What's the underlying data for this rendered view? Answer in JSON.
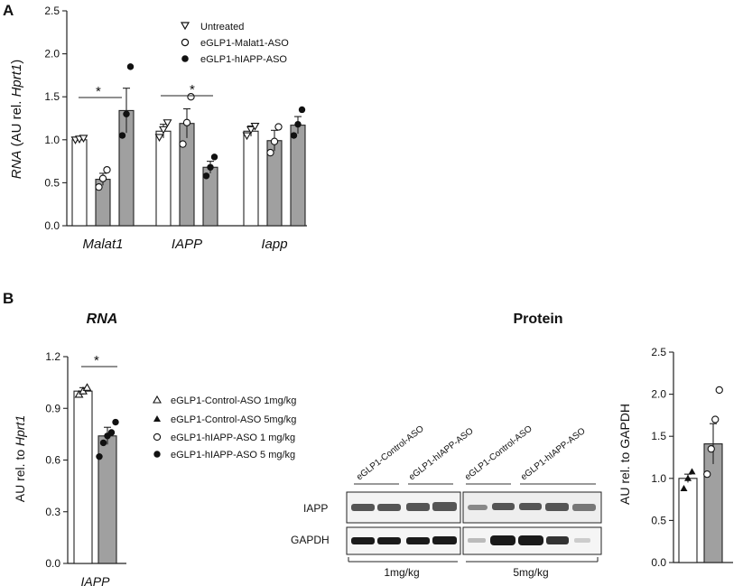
{
  "panel_a": {
    "letter": "A",
    "legend": [
      "Untreated",
      "eGLP1-Malat1-ASO",
      "eGLP1-hIAPP-ASO"
    ],
    "sig": [
      "*",
      "*"
    ]
  },
  "panel_b": {
    "letter": "B",
    "rna_title": "RNA",
    "protein_title": "Protein",
    "legend": [
      "eGLP1-Control-ASO 1mg/kg",
      "eGLP1-Control-ASO 5mg/kg",
      "eGLP1-hIAPP-ASO 1 mg/kg",
      "eGLP1-hIAPP-ASO 5 mg/kg"
    ],
    "sig": [
      "*"
    ],
    "blot": {
      "lane_headers": [
        "eGLP1-Control-ASO",
        "eGLP1-hIAPP-ASO",
        "eGLP1-Control-ASO",
        "eGLP1-hIAPP-ASO"
      ],
      "rows": [
        "IAPP",
        "GAPDH"
      ],
      "doses": [
        "1mg/kg",
        "5mg/kg"
      ]
    }
  },
  "chart_data": [
    {
      "type": "bar",
      "ylabel_parts": [
        "RNA",
        " (AU rel. ",
        "Hprt1",
        ")"
      ],
      "ylim": [
        0,
        2.5
      ],
      "yticks": [
        "0.0",
        "0.5",
        "1.0",
        "1.5",
        "2.0",
        "2.5"
      ],
      "categories": [
        "Malat1",
        "IAPP",
        "Iapp"
      ],
      "series": [
        {
          "name": "Untreated",
          "values": [
            1.0,
            1.1,
            1.1
          ],
          "errors": [
            0.02,
            0.08,
            0.06
          ],
          "points": [
            [
              1.0,
              1.01,
              1.02
            ],
            [
              1.03,
              1.12,
              1.2
            ],
            [
              1.05,
              1.12,
              1.16
            ]
          ]
        },
        {
          "name": "eGLP1-Malat1-ASO",
          "values": [
            0.54,
            1.19,
            0.99
          ],
          "errors": [
            0.07,
            0.17,
            0.12
          ],
          "points": [
            [
              0.45,
              0.55,
              0.65
            ],
            [
              0.95,
              1.2,
              1.5
            ],
            [
              0.85,
              0.98,
              1.15
            ]
          ]
        },
        {
          "name": "eGLP1-hIAPP-ASO",
          "values": [
            1.34,
            0.68,
            1.17
          ],
          "errors": [
            0.26,
            0.07,
            0.1
          ],
          "points": [
            [
              1.05,
              1.3,
              1.85
            ],
            [
              0.58,
              0.68,
              0.8
            ],
            [
              1.05,
              1.18,
              1.35
            ]
          ]
        }
      ]
    },
    {
      "type": "bar",
      "ylabel_parts": [
        "AU rel. to ",
        "Hprt1"
      ],
      "ylim": [
        0,
        1.2
      ],
      "yticks": [
        "0.0",
        "0.3",
        "0.6",
        "0.9",
        "1.2"
      ],
      "categories": [
        "IAPP"
      ],
      "series": [
        {
          "name": "eGLP1-Control-ASO",
          "values": [
            1.0
          ],
          "errors": [
            0.02
          ],
          "points": [
            [
              0.98,
              1.0,
              1.02
            ]
          ]
        },
        {
          "name": "eGLP1-hIAPP-ASO",
          "values": [
            0.74
          ],
          "errors": [
            0.05
          ],
          "points": [
            [
              0.62,
              0.7,
              0.74,
              0.76,
              0.82
            ]
          ]
        }
      ]
    },
    {
      "type": "bar",
      "ylabel": "AU rel. to GAPDH",
      "ylim": [
        0,
        2.5
      ],
      "yticks": [
        "0.0",
        "0.5",
        "1.0",
        "1.5",
        "2.0",
        "2.5"
      ],
      "categories": [
        ""
      ],
      "series": [
        {
          "name": "eGLP1-Control-ASO",
          "values": [
            1.0
          ],
          "errors": [
            0.05
          ],
          "points": [
            [
              0.88,
              1.0,
              1.08
            ]
          ]
        },
        {
          "name": "eGLP1-hIAPP-ASO",
          "values": [
            1.41
          ],
          "errors": [
            0.24
          ],
          "points": [
            [
              1.05,
              1.35,
              1.7,
              2.05
            ]
          ]
        }
      ]
    }
  ]
}
